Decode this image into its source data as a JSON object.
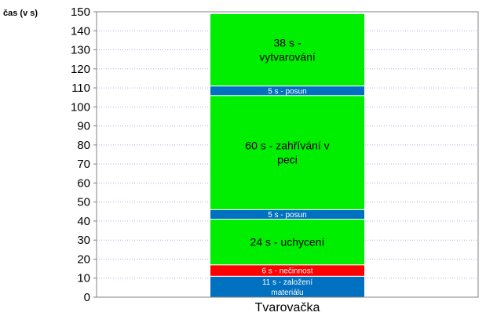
{
  "chart_data": {
    "type": "bar",
    "stacked": true,
    "categories": [
      "Tvarovačka"
    ],
    "ylabel": "čas (v s)",
    "ylim": [
      0,
      150
    ],
    "yticks": [
      0,
      10,
      20,
      30,
      40,
      50,
      60,
      70,
      80,
      90,
      100,
      110,
      120,
      130,
      140,
      150
    ],
    "grid": true,
    "series": [
      {
        "label_lines": [
          "11 s - založení",
          "materiálu"
        ],
        "value": 11,
        "color": "#0070C0",
        "label_style": "small"
      },
      {
        "label_lines": [
          "6 s - nečinnost"
        ],
        "value": 6,
        "color": "#FF0000",
        "label_style": "small"
      },
      {
        "label_lines": [
          "24 s - uchycení"
        ],
        "value": 24,
        "color": "#00EE00",
        "label_style": "large"
      },
      {
        "label_lines": [
          "5 s - posun"
        ],
        "value": 5,
        "color": "#0070C0",
        "label_style": "small"
      },
      {
        "label_lines": [
          "60 s - zahřívání  v",
          "peci"
        ],
        "value": 60,
        "color": "#00EE00",
        "label_style": "large"
      },
      {
        "label_lines": [
          "5 s - posun"
        ],
        "value": 5,
        "color": "#0070C0",
        "label_style": "small"
      },
      {
        "label_lines": [
          "38 s -",
          "vytvarování"
        ],
        "value": 38,
        "color": "#00EE00",
        "label_style": "large"
      }
    ]
  }
}
